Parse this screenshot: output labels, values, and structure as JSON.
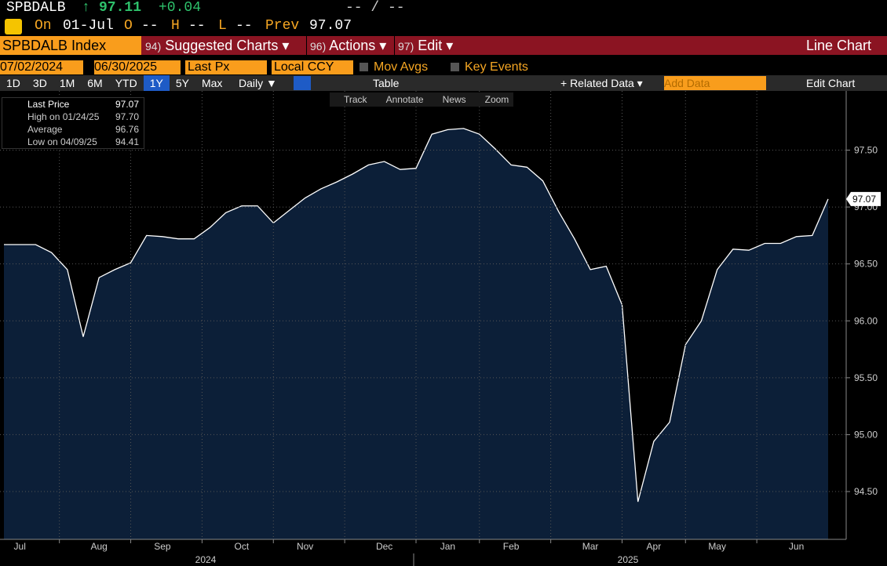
{
  "header": {
    "ticker": "SPBDALB",
    "arrow": "↑",
    "last": "97.11",
    "change": "+0.04",
    "bid_ask": "-- / --",
    "on_label": "On",
    "date": "01-Jul",
    "open_label": "O",
    "open": "--",
    "high_label": "H",
    "high": "--",
    "low_label": "L",
    "low": "--",
    "prev_label": "Prev",
    "prev": "97.07"
  },
  "menu": {
    "security": "SPBDALB Index",
    "items": [
      {
        "num": "94)",
        "label": "Suggested Charts ▾"
      },
      {
        "num": "96)",
        "label": "Actions ▾"
      },
      {
        "num": "97)",
        "label": "Edit ▾"
      }
    ],
    "chart_kind": "Line Chart"
  },
  "controls": {
    "start": "07/02/2024",
    "end": "06/30/2025",
    "field": "Last Px",
    "currency": "Local CCY",
    "options": [
      "Mov Avgs",
      "Key Events"
    ]
  },
  "toolbar": {
    "periods": [
      "1D",
      "3D",
      "1M",
      "6M",
      "YTD",
      "1Y",
      "5Y",
      "Max"
    ],
    "frequency": "Daily ▼",
    "table": "Table",
    "related": "+ Related Data ▾",
    "add_data": "Add Data",
    "edit": "Edit Chart"
  },
  "chart_tools": [
    "Track",
    "Annotate",
    "News",
    "Zoom"
  ],
  "legend_box": [
    {
      "label": "Last Price",
      "value": "97.07"
    },
    {
      "label": "High on 01/24/25",
      "value": "97.70"
    },
    {
      "label": "Average",
      "value": "96.76"
    },
    {
      "label": "Low on 04/09/25",
      "value": "94.41"
    }
  ],
  "chart_data": {
    "type": "line",
    "color": "#ffffff",
    "fill": "#0c1f38",
    "categories": [
      null,
      "Jul",
      null,
      null,
      null,
      null,
      "Aug",
      null,
      null,
      null,
      "Sep",
      null,
      null,
      null,
      null,
      "Oct",
      null,
      null,
      null,
      "Nov",
      null,
      null,
      null,
      null,
      "Dec",
      null,
      null,
      null,
      "Jan",
      null,
      null,
      null,
      "Feb",
      null,
      null,
      null,
      null,
      "Mar",
      null,
      null,
      null,
      "Apr",
      null,
      null,
      null,
      "May",
      null,
      null,
      null,
      null,
      "Jun",
      null,
      null
    ],
    "values": [
      96.67,
      96.67,
      96.67,
      96.6,
      96.45,
      95.86,
      96.38,
      96.45,
      96.51,
      96.75,
      96.74,
      96.72,
      96.72,
      96.82,
      96.95,
      97.01,
      97.01,
      96.86,
      96.97,
      97.08,
      97.16,
      97.22,
      97.29,
      97.37,
      97.4,
      97.33,
      97.34,
      97.64,
      97.68,
      97.69,
      97.64,
      97.51,
      97.37,
      97.35,
      97.23,
      96.96,
      96.72,
      96.45,
      96.48,
      96.14,
      94.41,
      94.94,
      95.11,
      95.79,
      96.0,
      96.45,
      96.63,
      96.62,
      96.68,
      96.68,
      96.74,
      96.75,
      97.07
    ],
    "value_labels": [
      null,
      null,
      null,
      null,
      null,
      null,
      null,
      null,
      null,
      null,
      null,
      null,
      null,
      null,
      null,
      null,
      null,
      null,
      null,
      null,
      null,
      null,
      null,
      null,
      null,
      null,
      null,
      null,
      null,
      null,
      null,
      null,
      null,
      null,
      null,
      null,
      null,
      null,
      null,
      null,
      null,
      null,
      null,
      null,
      null,
      null,
      null,
      null,
      null,
      null,
      null,
      null,
      "97.07"
    ],
    "ylim": [
      94.08,
      98.02
    ],
    "yticks": [
      {
        "value": 94.5,
        "label": "94.50"
      },
      {
        "value": 95,
        "label": "95.00"
      },
      {
        "value": 95.5,
        "label": "95.50"
      },
      {
        "value": 96,
        "label": "96.00"
      },
      {
        "value": 96.5,
        "label": "96.50"
      },
      {
        "value": 97,
        "label": "97.00"
      },
      {
        "value": 97.5,
        "label": "97.50"
      }
    ],
    "grid": true,
    "year_labels": [
      "2024",
      "2025"
    ]
  }
}
